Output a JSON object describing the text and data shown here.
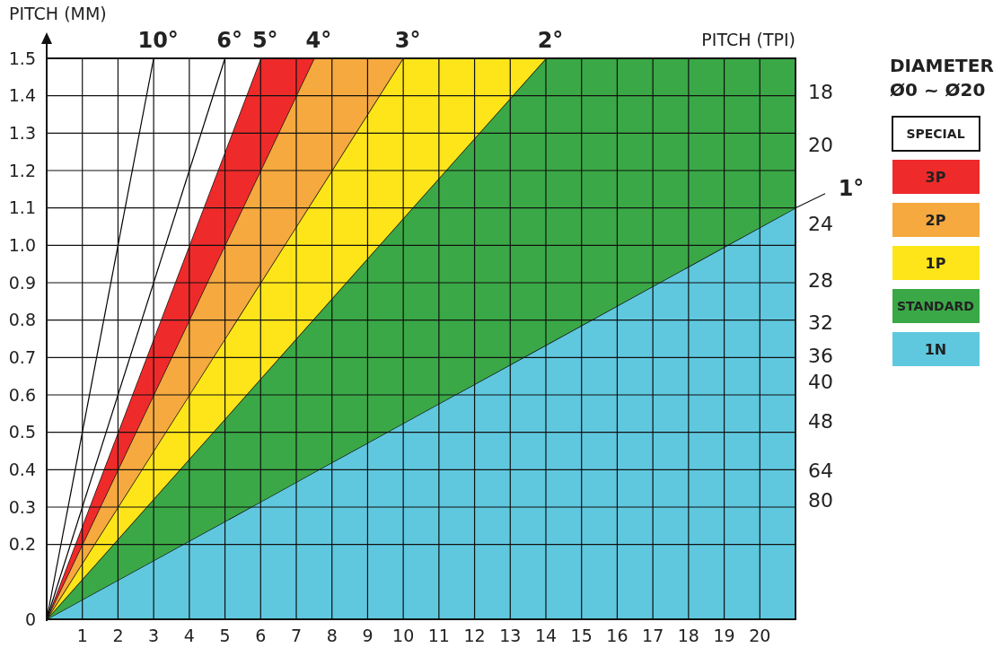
{
  "chart_data": {
    "type": "area",
    "stacked": true,
    "ylabel": "PITCH (MM)",
    "y2label": "PITCH (TPI)",
    "legend_title": "DIAMETER\nØ0 ~ Ø20",
    "legend": "right",
    "grid": true,
    "x": [
      0,
      6,
      7.5,
      10,
      14,
      21
    ],
    "xlim": [
      0,
      21
    ],
    "xticks": [
      1,
      2,
      3,
      4,
      5,
      6,
      7,
      8,
      9,
      10,
      11,
      12,
      13,
      14,
      15,
      16,
      17,
      18,
      19,
      20
    ],
    "ylim": [
      0,
      1.5
    ],
    "yticks": [
      0,
      0.2,
      0.3,
      0.4,
      0.5,
      0.6,
      0.7,
      0.8,
      0.9,
      {
        "value": 1,
        "label": "1.0"
      },
      1.1,
      1.2,
      1.3,
      1.4,
      1.5
    ],
    "series": [
      {
        "name": "1N",
        "color": "#5fc8df",
        "values": [
          0,
          0.314,
          0.393,
          0.524,
          0.733,
          1.1
        ]
      },
      {
        "name": "STANDARD",
        "color": "#3aa846",
        "values": [
          0,
          0.329,
          0.411,
          0.548,
          0.767,
          0.4
        ]
      },
      {
        "name": "1P",
        "color": "#fde51a",
        "values": [
          0,
          0.257,
          0.321,
          0.429,
          0,
          null
        ]
      },
      {
        "name": "2P",
        "color": "#f5a93e",
        "values": [
          0,
          0.3,
          0.375,
          0,
          null,
          null
        ]
      },
      {
        "name": "3P",
        "color": "#ee2a2a",
        "values": [
          0,
          0.3,
          0,
          null,
          null,
          null
        ]
      },
      {
        "name": "SPECIAL",
        "color": "#ffffff",
        "values": [
          1.5,
          0,
          null,
          null,
          null,
          null
        ]
      },
      {
        "type": "line",
        "color": "#000000",
        "x": [
          0,
          3
        ],
        "values": [
          0,
          1.5
        ]
      },
      {
        "type": "line",
        "color": "#000000",
        "x": [
          0,
          5
        ],
        "values": [
          0,
          1.5
        ]
      }
    ],
    "annotations": [
      {
        "text": "10°",
        "x": 3,
        "y": 1.5
      },
      {
        "text": "6°",
        "x": 5,
        "y": 1.5
      },
      {
        "text": "5°",
        "x": 6,
        "y": 1.5
      },
      {
        "text": "4°",
        "x": 7.5,
        "y": 1.5
      },
      {
        "text": "3°",
        "x": 10,
        "y": 1.5
      },
      {
        "text": "2°",
        "x": 14,
        "y": 1.5
      },
      {
        "text": "1°",
        "x": 21,
        "y": 1.1
      },
      "18",
      "20",
      "24",
      "28",
      "32",
      "36",
      "40",
      "48",
      "64",
      "80"
    ]
  }
}
